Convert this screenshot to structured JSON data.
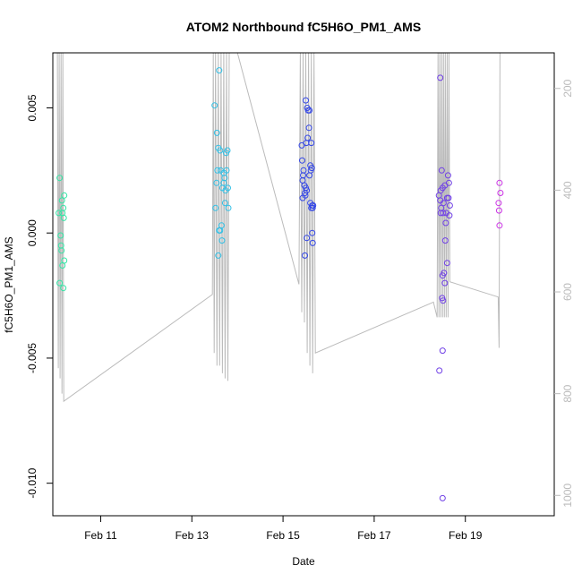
{
  "chart_data": {
    "type": "scatter",
    "title": "ATOM2 Northbound fC5H6O_PM1_AMS",
    "xlabel": "Date",
    "ylabel": "fC5H6O_PM1_AMS",
    "xlim": [
      9.95,
      20.95
    ],
    "ylim": [
      -0.0113,
      0.0072
    ],
    "x_unit": "days of February",
    "x_ticks": [
      {
        "value": 11,
        "label": "Feb 11"
      },
      {
        "value": 13,
        "label": "Feb 13"
      },
      {
        "value": 15,
        "label": "Feb 15"
      },
      {
        "value": 17,
        "label": "Feb 17"
      },
      {
        "value": 19,
        "label": "Feb 19"
      }
    ],
    "y_ticks": [
      {
        "value": 0.005,
        "label": "0.005"
      },
      {
        "value": 0.0,
        "label": "0.000"
      },
      {
        "value": -0.005,
        "label": "-0.005"
      },
      {
        "value": -0.01,
        "label": "-0.010"
      }
    ],
    "right_axis": {
      "range": [
        130,
        1040
      ],
      "ticks": [
        {
          "value": 200,
          "label": "200"
        },
        {
          "value": 400,
          "label": "400"
        },
        {
          "value": 600,
          "label": "600"
        },
        {
          "value": 800,
          "label": "800"
        },
        {
          "value": 1000,
          "label": "1000"
        }
      ],
      "color": "#bbbbbb"
    },
    "series": [
      {
        "name": "points",
        "points": [
          {
            "x": 10.1,
            "y": 0.0022,
            "color": "#33e6a6"
          },
          {
            "x": 10.08,
            "y": 0.0008,
            "color": "#33e6a6"
          },
          {
            "x": 10.15,
            "y": 0.0013,
            "color": "#33e6a6"
          },
          {
            "x": 10.2,
            "y": 0.0015,
            "color": "#33e6a6"
          },
          {
            "x": 10.18,
            "y": 0.001,
            "color": "#33e6a6"
          },
          {
            "x": 10.16,
            "y": 0.0008,
            "color": "#33e6a6"
          },
          {
            "x": 10.19,
            "y": 0.0006,
            "color": "#33e6a6"
          },
          {
            "x": 10.12,
            "y": -0.0001,
            "color": "#33e6a6"
          },
          {
            "x": 10.13,
            "y": -0.0005,
            "color": "#33e6a6"
          },
          {
            "x": 10.14,
            "y": -0.0007,
            "color": "#33e6a6"
          },
          {
            "x": 10.2,
            "y": -0.0011,
            "color": "#33e6a6"
          },
          {
            "x": 10.16,
            "y": -0.0013,
            "color": "#33e6a6"
          },
          {
            "x": 10.1,
            "y": -0.002,
            "color": "#33e6a6"
          },
          {
            "x": 10.18,
            "y": -0.0022,
            "color": "#33e6a6"
          },
          {
            "x": 13.6,
            "y": 0.0065,
            "color": "#33c0e6"
          },
          {
            "x": 13.5,
            "y": 0.0051,
            "color": "#33c0e6"
          },
          {
            "x": 13.55,
            "y": 0.004,
            "color": "#33c0e6"
          },
          {
            "x": 13.58,
            "y": 0.0034,
            "color": "#33c0e6"
          },
          {
            "x": 13.62,
            "y": 0.0033,
            "color": "#33c0e6"
          },
          {
            "x": 13.78,
            "y": 0.0033,
            "color": "#33c0e6"
          },
          {
            "x": 13.75,
            "y": 0.0032,
            "color": "#33c0e6"
          },
          {
            "x": 13.56,
            "y": 0.0025,
            "color": "#33c0e6"
          },
          {
            "x": 13.63,
            "y": 0.0025,
            "color": "#33c0e6"
          },
          {
            "x": 13.7,
            "y": 0.0024,
            "color": "#33c0e6"
          },
          {
            "x": 13.76,
            "y": 0.0025,
            "color": "#33c0e6"
          },
          {
            "x": 13.72,
            "y": 0.0022,
            "color": "#33c0e6"
          },
          {
            "x": 13.7,
            "y": 0.002,
            "color": "#33c0e6"
          },
          {
            "x": 13.54,
            "y": 0.002,
            "color": "#33c0e6"
          },
          {
            "x": 13.67,
            "y": 0.0018,
            "color": "#33c0e6"
          },
          {
            "x": 13.74,
            "y": 0.0017,
            "color": "#33c0e6"
          },
          {
            "x": 13.79,
            "y": 0.0018,
            "color": "#33c0e6"
          },
          {
            "x": 13.73,
            "y": 0.0012,
            "color": "#33c0e6"
          },
          {
            "x": 13.52,
            "y": 0.001,
            "color": "#33c0e6"
          },
          {
            "x": 13.8,
            "y": 0.001,
            "color": "#33c0e6"
          },
          {
            "x": 13.65,
            "y": 0.0003,
            "color": "#33c0e6"
          },
          {
            "x": 13.6,
            "y": 0.0001,
            "color": "#33c0e6"
          },
          {
            "x": 13.62,
            "y": 0.0001,
            "color": "#33c0e6"
          },
          {
            "x": 13.66,
            "y": -0.0003,
            "color": "#33c0e6"
          },
          {
            "x": 13.58,
            "y": -0.0009,
            "color": "#33c0e6"
          },
          {
            "x": 15.5,
            "y": 0.0053,
            "color": "#3346e6"
          },
          {
            "x": 15.53,
            "y": 0.005,
            "color": "#3346e6"
          },
          {
            "x": 15.58,
            "y": 0.0049,
            "color": "#3346e6"
          },
          {
            "x": 15.55,
            "y": 0.0049,
            "color": "#3346e6"
          },
          {
            "x": 15.57,
            "y": 0.0042,
            "color": "#3346e6"
          },
          {
            "x": 15.54,
            "y": 0.0038,
            "color": "#3346e6"
          },
          {
            "x": 15.51,
            "y": 0.0036,
            "color": "#3346e6"
          },
          {
            "x": 15.62,
            "y": 0.0036,
            "color": "#3346e6"
          },
          {
            "x": 15.41,
            "y": 0.0035,
            "color": "#3346e6"
          },
          {
            "x": 15.42,
            "y": 0.0029,
            "color": "#3346e6"
          },
          {
            "x": 15.6,
            "y": 0.0027,
            "color": "#3346e6"
          },
          {
            "x": 15.63,
            "y": 0.0026,
            "color": "#3346e6"
          },
          {
            "x": 15.61,
            "y": 0.0025,
            "color": "#3346e6"
          },
          {
            "x": 15.45,
            "y": 0.0025,
            "color": "#3346e6"
          },
          {
            "x": 15.44,
            "y": 0.0023,
            "color": "#3346e6"
          },
          {
            "x": 15.58,
            "y": 0.0023,
            "color": "#3346e6"
          },
          {
            "x": 15.43,
            "y": 0.0021,
            "color": "#3346e6"
          },
          {
            "x": 15.47,
            "y": 0.0019,
            "color": "#3346e6"
          },
          {
            "x": 15.5,
            "y": 0.0018,
            "color": "#3346e6"
          },
          {
            "x": 15.52,
            "y": 0.0017,
            "color": "#3346e6"
          },
          {
            "x": 15.48,
            "y": 0.0016,
            "color": "#3346e6"
          },
          {
            "x": 15.49,
            "y": 0.0015,
            "color": "#3346e6"
          },
          {
            "x": 15.43,
            "y": 0.0014,
            "color": "#3346e6"
          },
          {
            "x": 15.6,
            "y": 0.0012,
            "color": "#3346e6"
          },
          {
            "x": 15.66,
            "y": 0.0011,
            "color": "#3346e6"
          },
          {
            "x": 15.64,
            "y": 0.0011,
            "color": "#3346e6"
          },
          {
            "x": 15.65,
            "y": 0.001,
            "color": "#3346e6"
          },
          {
            "x": 15.62,
            "y": 0.001,
            "color": "#3346e6"
          },
          {
            "x": 15.64,
            "y": 0.0,
            "color": "#3346e6"
          },
          {
            "x": 15.52,
            "y": -0.0002,
            "color": "#3346e6"
          },
          {
            "x": 15.65,
            "y": -0.0004,
            "color": "#3346e6"
          },
          {
            "x": 15.48,
            "y": -0.0009,
            "color": "#3346e6"
          },
          {
            "x": 18.45,
            "y": 0.0062,
            "color": "#7040e6"
          },
          {
            "x": 18.48,
            "y": 0.0025,
            "color": "#7040e6"
          },
          {
            "x": 18.62,
            "y": 0.0023,
            "color": "#7040e6"
          },
          {
            "x": 18.64,
            "y": 0.002,
            "color": "#7040e6"
          },
          {
            "x": 18.55,
            "y": 0.0019,
            "color": "#7040e6"
          },
          {
            "x": 18.5,
            "y": 0.0018,
            "color": "#7040e6"
          },
          {
            "x": 18.46,
            "y": 0.0017,
            "color": "#7040e6"
          },
          {
            "x": 18.42,
            "y": 0.0015,
            "color": "#7040e6"
          },
          {
            "x": 18.6,
            "y": 0.0014,
            "color": "#7040e6"
          },
          {
            "x": 18.63,
            "y": 0.0014,
            "color": "#7040e6"
          },
          {
            "x": 18.45,
            "y": 0.0013,
            "color": "#7040e6"
          },
          {
            "x": 18.52,
            "y": 0.0012,
            "color": "#7040e6"
          },
          {
            "x": 18.66,
            "y": 0.0011,
            "color": "#7040e6"
          },
          {
            "x": 18.47,
            "y": 0.001,
            "color": "#7040e6"
          },
          {
            "x": 18.58,
            "y": 0.0008,
            "color": "#7040e6"
          },
          {
            "x": 18.51,
            "y": 0.0008,
            "color": "#7040e6"
          },
          {
            "x": 18.46,
            "y": 0.0008,
            "color": "#7040e6"
          },
          {
            "x": 18.65,
            "y": 0.0007,
            "color": "#7040e6"
          },
          {
            "x": 18.57,
            "y": 0.0004,
            "color": "#7040e6"
          },
          {
            "x": 18.56,
            "y": -0.0003,
            "color": "#7040e6"
          },
          {
            "x": 18.6,
            "y": -0.0012,
            "color": "#7040e6"
          },
          {
            "x": 18.53,
            "y": -0.0016,
            "color": "#7040e6"
          },
          {
            "x": 18.5,
            "y": -0.0017,
            "color": "#7040e6"
          },
          {
            "x": 18.55,
            "y": -0.002,
            "color": "#7040e6"
          },
          {
            "x": 18.49,
            "y": -0.0026,
            "color": "#7040e6"
          },
          {
            "x": 18.51,
            "y": -0.0027,
            "color": "#7040e6"
          },
          {
            "x": 18.5,
            "y": -0.0047,
            "color": "#7040e6"
          },
          {
            "x": 18.43,
            "y": -0.0055,
            "color": "#7040e6"
          },
          {
            "x": 18.5,
            "y": -0.0106,
            "color": "#7040e6"
          },
          {
            "x": 19.75,
            "y": 0.002,
            "color": "#cc33e6"
          },
          {
            "x": 19.77,
            "y": 0.0016,
            "color": "#cc33e6"
          },
          {
            "x": 19.73,
            "y": 0.0012,
            "color": "#cc33e6"
          },
          {
            "x": 19.74,
            "y": 0.0009,
            "color": "#cc33e6"
          },
          {
            "x": 19.75,
            "y": 0.0003,
            "color": "#cc33e6"
          }
        ]
      }
    ],
    "secondary_line": {
      "axis": "right",
      "color": "#bbbbbb",
      "points": [
        [
          10.05,
          125
        ],
        [
          10.07,
          750
        ],
        [
          10.09,
          125
        ],
        [
          10.11,
          770
        ],
        [
          10.13,
          125
        ],
        [
          10.15,
          800
        ],
        [
          10.17,
          125
        ],
        [
          10.19,
          815
        ],
        [
          13.45,
          605
        ],
        [
          13.47,
          125
        ],
        [
          13.49,
          720
        ],
        [
          13.52,
          125
        ],
        [
          13.55,
          745
        ],
        [
          13.58,
          125
        ],
        [
          13.61,
          745
        ],
        [
          13.64,
          125
        ],
        [
          13.67,
          760
        ],
        [
          13.7,
          125
        ],
        [
          13.73,
          770
        ],
        [
          13.76,
          125
        ],
        [
          13.79,
          775
        ],
        [
          13.82,
          125
        ],
        [
          14.0,
          125
        ],
        [
          15.35,
          585
        ],
        [
          15.38,
          125
        ],
        [
          15.41,
          640
        ],
        [
          15.44,
          125
        ],
        [
          15.47,
          660
        ],
        [
          15.5,
          125
        ],
        [
          15.53,
          720
        ],
        [
          15.56,
          125
        ],
        [
          15.59,
          745
        ],
        [
          15.62,
          125
        ],
        [
          15.65,
          760
        ],
        [
          15.68,
          125
        ],
        [
          15.71,
          720
        ],
        [
          18.3,
          620
        ],
        [
          18.38,
          650
        ],
        [
          18.4,
          125
        ],
        [
          18.42,
          650
        ],
        [
          18.44,
          125
        ],
        [
          18.46,
          650
        ],
        [
          18.48,
          125
        ],
        [
          18.5,
          650
        ],
        [
          18.52,
          125
        ],
        [
          18.54,
          650
        ],
        [
          18.56,
          125
        ],
        [
          18.58,
          650
        ],
        [
          18.6,
          125
        ],
        [
          18.62,
          650
        ],
        [
          18.64,
          125
        ],
        [
          18.66,
          580
        ],
        [
          19.72,
          610
        ],
        [
          19.74,
          710
        ],
        [
          19.76,
          125
        ]
      ]
    }
  }
}
